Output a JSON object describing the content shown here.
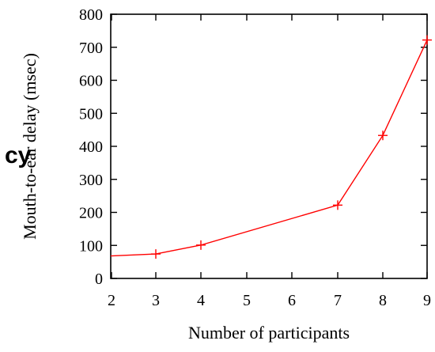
{
  "chart_data": {
    "type": "line",
    "title": "",
    "xlabel": "Number of participants",
    "ylabel": "Mouth-to-ear delay (msec)",
    "x_ticks": [
      "2",
      "3",
      "4",
      "5",
      "6",
      "7",
      "8",
      "9"
    ],
    "ylim": [
      0,
      800
    ],
    "y_ticks": [
      0,
      100,
      200,
      300,
      400,
      500,
      600,
      700,
      800
    ],
    "grid": false,
    "legend": "none",
    "series": [
      {
        "color": "#ff0000",
        "marker": "plus",
        "points": [
          {
            "x": "2",
            "y": 68
          },
          {
            "x": "3",
            "y": 74
          },
          {
            "x": "4",
            "y": 101
          },
          {
            "x": "7",
            "y": 222
          },
          {
            "x": "8",
            "y": 433
          },
          {
            "x": "9",
            "y": 722
          }
        ]
      }
    ]
  },
  "overlay_fragment": "cy"
}
